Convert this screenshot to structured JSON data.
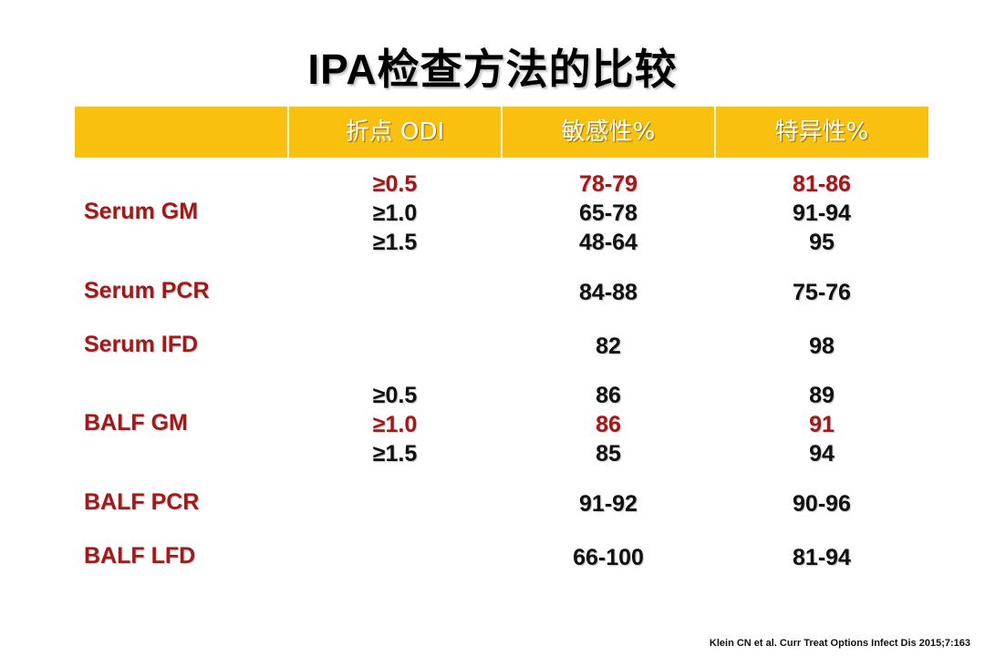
{
  "title": "IPA检查方法的比较",
  "header": {
    "col0": "",
    "col1": "折点 ODI",
    "col2": "敏感性%",
    "col3": "特异性%"
  },
  "colors": {
    "header_bg": "#f9c010",
    "accent_red": "#a31818",
    "text": "#111111"
  },
  "rows": [
    {
      "label": "Serum GM",
      "odi": [
        "≥0.5",
        "≥1.0",
        "≥1.5"
      ],
      "sensitivity": [
        "78-79",
        "65-78",
        "48-64"
      ],
      "specificity": [
        "81-86",
        "91-94",
        "95"
      ],
      "highlight_index": 0
    },
    {
      "label": "Serum PCR",
      "odi": [],
      "sensitivity": [
        "84-88"
      ],
      "specificity": [
        "75-76"
      ]
    },
    {
      "label": "Serum IFD",
      "odi": [],
      "sensitivity": [
        "82"
      ],
      "specificity": [
        "98"
      ]
    },
    {
      "label": "BALF GM",
      "odi": [
        "≥0.5",
        "≥1.0",
        "≥1.5"
      ],
      "sensitivity": [
        "86",
        "86",
        "85"
      ],
      "specificity": [
        "89",
        "91",
        "94"
      ],
      "highlight_index": 1
    },
    {
      "label": "BALF PCR",
      "odi": [],
      "sensitivity": [
        "91-92"
      ],
      "specificity": [
        "90-96"
      ]
    },
    {
      "label": "BALF LFD",
      "odi": [],
      "sensitivity": [
        "66-100"
      ],
      "specificity": [
        "81-94"
      ]
    }
  ],
  "citation": "Klein CN et al. Curr Treat Options Infect Dis 2015;7:163"
}
